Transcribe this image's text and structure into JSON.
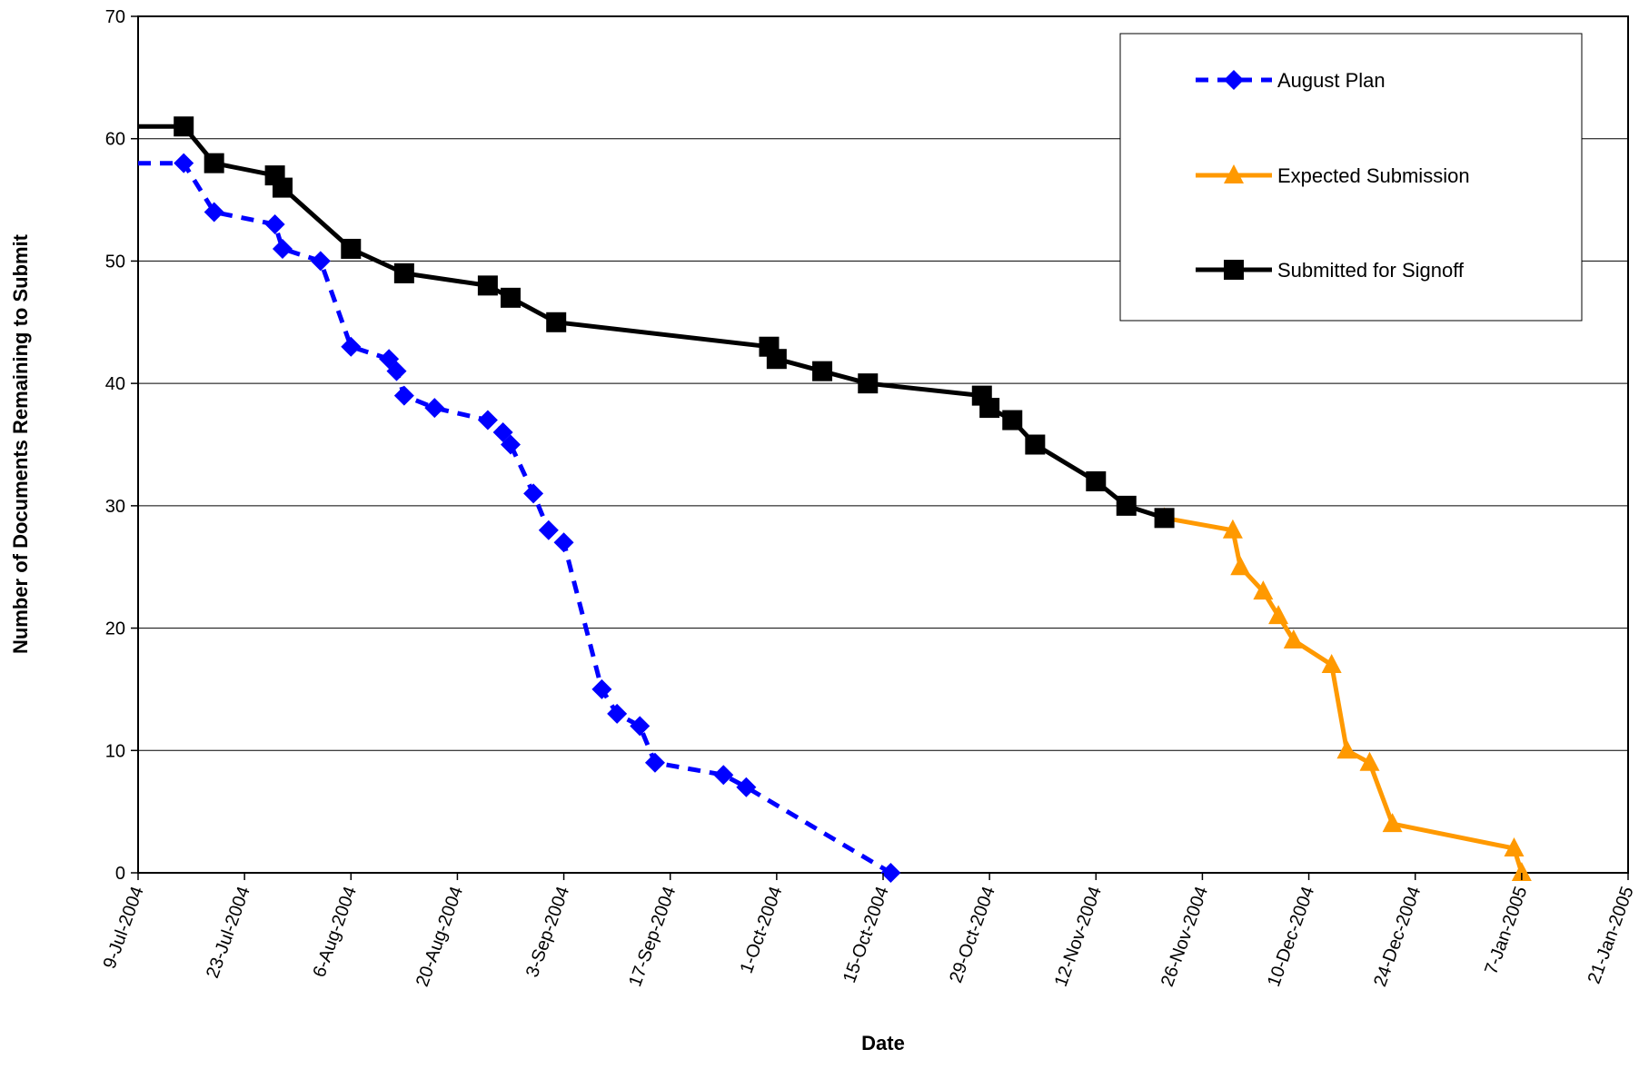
{
  "chart_data": {
    "type": "line",
    "title": "",
    "xlabel": "Date",
    "ylabel": "Number of Documents Remaining to Submit",
    "xlim": [
      "2004-07-09",
      "2005-01-21"
    ],
    "ylim": [
      0,
      70
    ],
    "y_ticks": [
      0,
      10,
      20,
      30,
      40,
      50,
      60,
      70
    ],
    "x_ticks": [
      {
        "date": "2004-07-09",
        "label": "9-Jul-2004"
      },
      {
        "date": "2004-07-23",
        "label": "23-Jul-2004"
      },
      {
        "date": "2004-08-06",
        "label": "6-Aug-2004"
      },
      {
        "date": "2004-08-20",
        "label": "20-Aug-2004"
      },
      {
        "date": "2004-09-03",
        "label": "3-Sep-2004"
      },
      {
        "date": "2004-09-17",
        "label": "17-Sep-2004"
      },
      {
        "date": "2004-10-01",
        "label": "1-Oct-2004"
      },
      {
        "date": "2004-10-15",
        "label": "15-Oct-2004"
      },
      {
        "date": "2004-10-29",
        "label": "29-Oct-2004"
      },
      {
        "date": "2004-11-12",
        "label": "12-Nov-2004"
      },
      {
        "date": "2004-11-26",
        "label": "26-Nov-2004"
      },
      {
        "date": "2004-12-10",
        "label": "10-Dec-2004"
      },
      {
        "date": "2004-12-24",
        "label": "24-Dec-2004"
      },
      {
        "date": "2005-01-07",
        "label": "7-Jan-2005"
      },
      {
        "date": "2005-01-21",
        "label": "21-Jan-2005"
      }
    ],
    "grid": "horizontal",
    "legend_position": "top-right",
    "series": [
      {
        "name": "August Plan",
        "color": "#0000ff",
        "line_style": "dashed",
        "marker": "diamond",
        "points": [
          {
            "x": "2004-07-09",
            "y": 58
          },
          {
            "x": "2004-07-15",
            "y": 58
          },
          {
            "x": "2004-07-19",
            "y": 54
          },
          {
            "x": "2004-07-27",
            "y": 53
          },
          {
            "x": "2004-07-28",
            "y": 51
          },
          {
            "x": "2004-08-02",
            "y": 50
          },
          {
            "x": "2004-08-06",
            "y": 43
          },
          {
            "x": "2004-08-11",
            "y": 42
          },
          {
            "x": "2004-08-12",
            "y": 41
          },
          {
            "x": "2004-08-13",
            "y": 39
          },
          {
            "x": "2004-08-17",
            "y": 38
          },
          {
            "x": "2004-08-24",
            "y": 37
          },
          {
            "x": "2004-08-26",
            "y": 36
          },
          {
            "x": "2004-08-27",
            "y": 35
          },
          {
            "x": "2004-08-30",
            "y": 31
          },
          {
            "x": "2004-09-01",
            "y": 28
          },
          {
            "x": "2004-09-03",
            "y": 27
          },
          {
            "x": "2004-09-08",
            "y": 15
          },
          {
            "x": "2004-09-10",
            "y": 13
          },
          {
            "x": "2004-09-13",
            "y": 12
          },
          {
            "x": "2004-09-15",
            "y": 9
          },
          {
            "x": "2004-09-24",
            "y": 8
          },
          {
            "x": "2004-09-27",
            "y": 7
          },
          {
            "x": "2004-10-16",
            "y": 0
          }
        ]
      },
      {
        "name": "Expected Submission",
        "color": "#ff9900",
        "line_style": "solid",
        "marker": "triangle",
        "points": [
          {
            "x": "2004-11-21",
            "y": 29
          },
          {
            "x": "2004-11-30",
            "y": 28
          },
          {
            "x": "2004-12-01",
            "y": 25
          },
          {
            "x": "2004-12-04",
            "y": 23
          },
          {
            "x": "2004-12-06",
            "y": 21
          },
          {
            "x": "2004-12-08",
            "y": 19
          },
          {
            "x": "2004-12-13",
            "y": 17
          },
          {
            "x": "2004-12-15",
            "y": 10
          },
          {
            "x": "2004-12-18",
            "y": 9
          },
          {
            "x": "2004-12-21",
            "y": 4
          },
          {
            "x": "2005-01-06",
            "y": 2
          },
          {
            "x": "2005-01-07",
            "y": 0
          }
        ]
      },
      {
        "name": "Submitted for Signoff",
        "color": "#000000",
        "line_style": "solid",
        "marker": "square",
        "points": [
          {
            "x": "2004-07-09",
            "y": 61
          },
          {
            "x": "2004-07-15",
            "y": 61
          },
          {
            "x": "2004-07-19",
            "y": 58
          },
          {
            "x": "2004-07-27",
            "y": 57
          },
          {
            "x": "2004-07-28",
            "y": 56
          },
          {
            "x": "2004-08-06",
            "y": 51
          },
          {
            "x": "2004-08-13",
            "y": 49
          },
          {
            "x": "2004-08-24",
            "y": 48
          },
          {
            "x": "2004-08-27",
            "y": 47
          },
          {
            "x": "2004-09-02",
            "y": 45
          },
          {
            "x": "2004-09-30",
            "y": 43
          },
          {
            "x": "2004-10-01",
            "y": 42
          },
          {
            "x": "2004-10-07",
            "y": 41
          },
          {
            "x": "2004-10-13",
            "y": 40
          },
          {
            "x": "2004-10-28",
            "y": 39
          },
          {
            "x": "2004-10-29",
            "y": 38
          },
          {
            "x": "2004-11-01",
            "y": 37
          },
          {
            "x": "2004-11-04",
            "y": 35
          },
          {
            "x": "2004-11-12",
            "y": 32
          },
          {
            "x": "2004-11-16",
            "y": 30
          },
          {
            "x": "2004-11-21",
            "y": 29
          }
        ]
      }
    ]
  }
}
